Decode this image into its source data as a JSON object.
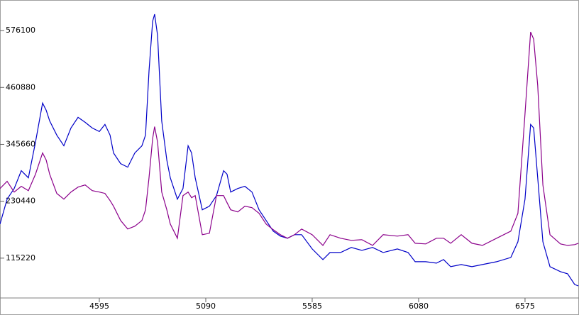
{
  "chart_data": {
    "type": "line",
    "x": [
      4133,
      4166,
      4199,
      4232,
      4265,
      4298,
      4331,
      4348,
      4364,
      4397,
      4430,
      4463,
      4496,
      4529,
      4562,
      4595,
      4621,
      4645,
      4661,
      4694,
      4727,
      4760,
      4793,
      4810,
      4826,
      4843,
      4852,
      4866,
      4885,
      4909,
      4925,
      4958,
      4984,
      5008,
      5024,
      5041,
      5074,
      5107,
      5140,
      5173,
      5189,
      5206,
      5239,
      5272,
      5305,
      5338,
      5371,
      5404,
      5437,
      5470,
      5503,
      5536,
      5585,
      5635,
      5668,
      5717,
      5767,
      5816,
      5866,
      5915,
      5981,
      6031,
      6064,
      6113,
      6163,
      6196,
      6229,
      6278,
      6328,
      6377,
      6443,
      6509,
      6542,
      6575,
      6601,
      6615,
      6634,
      6658,
      6691,
      6740,
      6773,
      6806,
      6823
    ],
    "series": [
      {
        "color": "#0000c8",
        "values": [
          184300,
          234700,
          256300,
          292300,
          277900,
          350000,
          429200,
          414800,
          393200,
          364400,
          342700,
          378800,
          400400,
          390300,
          378800,
          371600,
          386000,
          364400,
          328300,
          306700,
          299500,
          328300,
          342700,
          364400,
          494000,
          594800,
          609200,
          566000,
          393200,
          313900,
          277900,
          234700,
          256300,
          342700,
          328300,
          277900,
          213100,
          220300,
          241900,
          292300,
          285100,
          249100,
          256300,
          260700,
          249100,
          213100,
          191500,
          169900,
          159800,
          155500,
          162700,
          162700,
          133900,
          112300,
          126700,
          126700,
          136800,
          131000,
          136800,
          126700,
          133900,
          126700,
          108000,
          108000,
          105100,
          112300,
          97900,
          102200,
          97900,
          102200,
          108000,
          116600,
          148300,
          234700,
          386000,
          378800,
          277900,
          148300,
          97900,
          87800,
          83500,
          61900,
          59000
        ]
      },
      {
        "color": "#8b008b",
        "values": [
          256300,
          270700,
          249100,
          260700,
          252000,
          285100,
          328300,
          313900,
          285100,
          246300,
          234700,
          249100,
          259200,
          263500,
          252000,
          249100,
          246300,
          231800,
          220300,
          191500,
          174200,
          180000,
          191500,
          213100,
          277900,
          357200,
          381600,
          350000,
          249100,
          213100,
          184300,
          155500,
          241900,
          249100,
          237600,
          241900,
          162700,
          165600,
          241900,
          241900,
          227500,
          213100,
          208800,
          220300,
          217400,
          205900,
          184300,
          172800,
          162700,
          155500,
          162700,
          174200,
          162700,
          141100,
          162700,
          155500,
          151200,
          152600,
          141100,
          162700,
          159800,
          162700,
          145400,
          144000,
          155500,
          155500,
          145400,
          162700,
          145400,
          141100,
          155500,
          169900,
          205900,
          407600,
          573200,
          558800,
          465200,
          263500,
          162700,
          144000,
          141100,
          142600,
          145400
        ]
      }
    ],
    "xlim": [
      4133,
      6826
    ],
    "ylim": [
      34566,
      638000
    ],
    "xticks": [
      4595,
      5090,
      5585,
      6080,
      6575
    ],
    "yticks": [
      115220,
      230440,
      345660,
      460880,
      576100
    ]
  }
}
